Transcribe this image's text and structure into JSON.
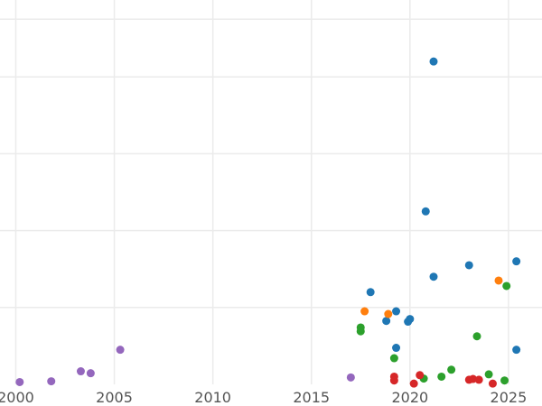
{
  "chart_data": {
    "type": "scatter",
    "title": "",
    "xlabel": "",
    "ylabel": "",
    "xlim": [
      1999.2,
      2026.7
    ],
    "ylim": [
      0,
      1
    ],
    "x_ticks": [
      2000,
      2005,
      2010,
      2015,
      2020,
      2025
    ],
    "x_tick_labels": [
      "2000",
      "2005",
      "2010",
      "2015",
      "2020",
      "2025"
    ],
    "y_gridlines": [
      0.2,
      0.4,
      0.6,
      0.8
    ],
    "y_tick_labels_visible": false,
    "legend": "none",
    "series": [
      {
        "name": "blue",
        "color": "#1f77b4",
        "points": [
          [
            2021.2,
            0.84
          ],
          [
            2020.8,
            0.45
          ],
          [
            2025.4,
            0.32
          ],
          [
            2023.0,
            0.31
          ],
          [
            2021.2,
            0.28
          ],
          [
            2018.0,
            0.24
          ],
          [
            2019.3,
            0.19
          ],
          [
            2020.0,
            0.17
          ],
          [
            2018.8,
            0.165
          ],
          [
            2019.9,
            0.163
          ],
          [
            2019.3,
            0.095
          ],
          [
            2025.4,
            0.09
          ]
        ]
      },
      {
        "name": "orange",
        "color": "#ff7f0e",
        "points": [
          [
            2017.7,
            0.19
          ],
          [
            2018.9,
            0.183
          ],
          [
            2024.5,
            0.27
          ]
        ]
      },
      {
        "name": "green",
        "color": "#2ca02c",
        "points": [
          [
            2024.9,
            0.256
          ],
          [
            2017.5,
            0.148
          ],
          [
            2017.5,
            0.138
          ],
          [
            2023.4,
            0.125
          ],
          [
            2019.2,
            0.068
          ],
          [
            2022.1,
            0.038
          ],
          [
            2024.0,
            0.026
          ],
          [
            2021.6,
            0.02
          ],
          [
            2020.7,
            0.015
          ],
          [
            2024.8,
            0.01
          ]
        ]
      },
      {
        "name": "red",
        "color": "#d62728",
        "points": [
          [
            2019.2,
            0.02
          ],
          [
            2020.5,
            0.024
          ],
          [
            2019.2,
            0.01
          ],
          [
            2023.0,
            0.012
          ],
          [
            2023.2,
            0.014
          ],
          [
            2023.5,
            0.012
          ],
          [
            2020.2,
            0.002
          ],
          [
            2024.2,
            0.002
          ]
        ]
      },
      {
        "name": "purple",
        "color": "#9467bd",
        "points": [
          [
            2005.3,
            0.09
          ],
          [
            2003.3,
            0.034
          ],
          [
            2003.8,
            0.029
          ],
          [
            2017.0,
            0.018
          ],
          [
            2000.2,
            0.006
          ],
          [
            2001.8,
            0.008
          ]
        ]
      }
    ]
  }
}
